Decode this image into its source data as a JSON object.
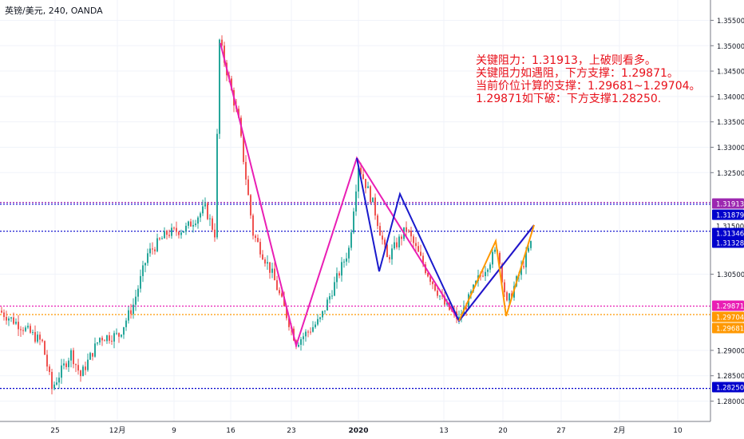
{
  "chart_data": {
    "type": "candlestick",
    "symbol": "英镑/美元, 240, OANDA",
    "y_axis": {
      "ticks": [
        "1.35500",
        "1.35000",
        "1.34500",
        "1.34000",
        "1.33500",
        "1.33000",
        "1.32500",
        "1.30500",
        "1.29000",
        "1.28500",
        "1.28000"
      ],
      "range": [
        1.276,
        1.359
      ]
    },
    "x_axis": {
      "ticks": [
        "25",
        "12月",
        "9",
        "16",
        "23",
        "2020",
        "13",
        "20",
        "27",
        "2月",
        "10"
      ]
    },
    "price_levels": [
      {
        "value": 1.31913,
        "label": "1.31913",
        "color": "#9c27b0"
      },
      {
        "value": 1.31879,
        "label": "1.31879",
        "color": "#0000cc"
      },
      {
        "value": 1.315,
        "label": "1.31500",
        "color": "#26a69a"
      },
      {
        "value": 1.31346,
        "label": "1.31346",
        "color": "#0000cc"
      },
      {
        "value": 1.31328,
        "label": "1.31328",
        "color": "#0000cc"
      },
      {
        "value": 1.29871,
        "label": "1.29871",
        "color": "#e91eb4"
      },
      {
        "value": 1.29704,
        "label": "1.29704",
        "color": "#ff9800"
      },
      {
        "value": 1.29681,
        "label": "1.29681",
        "color": "#ff9800"
      },
      {
        "value": 1.2825,
        "label": "1.28250",
        "color": "#0000cc"
      }
    ],
    "annotations": [
      "关键阻力：1.31913，上破则看多。",
      "关键阻力如遇阻，下方支撑：1.29871。",
      "当前价位计算的支撑：1.29681~1.29704。",
      "1.29871如下破：下方支撑1.28250."
    ],
    "colors": {
      "up": "#26a69a",
      "down": "#ef5350"
    }
  }
}
